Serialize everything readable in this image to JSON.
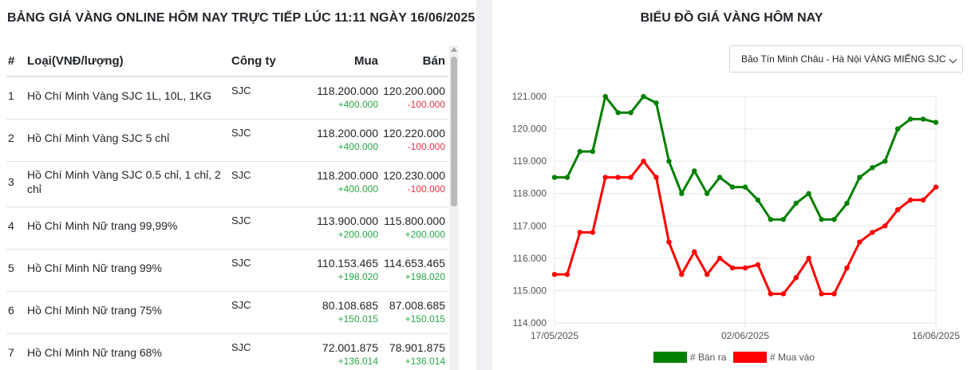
{
  "table": {
    "title": "BẢNG GIÁ VÀNG ONLINE HÔM NAY TRỰC TIẾP LÚC 11:11 NGÀY 16/06/2025",
    "headers": {
      "idx": "#",
      "name": "Loại(VNĐ/lượng)",
      "company": "Công ty",
      "buy": "Mua",
      "sell": "Bán"
    },
    "rows": [
      {
        "idx": "1",
        "name": "Hồ Chí Minh Vàng SJC 1L, 10L, 1KG",
        "company": "SJC",
        "buy": "118.200.000",
        "buy_change": "+400.000",
        "buy_dir": "up",
        "sell": "120.200.000",
        "sell_change": "-100.000",
        "sell_dir": "down"
      },
      {
        "idx": "2",
        "name": "Hồ Chí Minh Vàng SJC 5 chỉ",
        "company": "SJC",
        "buy": "118.200.000",
        "buy_change": "+400.000",
        "buy_dir": "up",
        "sell": "120.220.000",
        "sell_change": "-100.000",
        "sell_dir": "down"
      },
      {
        "idx": "3",
        "name": "Hồ Chí Minh Vàng SJC 0.5 chỉ, 1 chỉ, 2 chỉ",
        "company": "SJC",
        "buy": "118.200.000",
        "buy_change": "+400.000",
        "buy_dir": "up",
        "sell": "120.230.000",
        "sell_change": "-100.000",
        "sell_dir": "down"
      },
      {
        "idx": "4",
        "name": "Hồ Chí Minh Nữ trang 99,99%",
        "company": "SJC",
        "buy": "113.900.000",
        "buy_change": "+200.000",
        "buy_dir": "up",
        "sell": "115.800.000",
        "sell_change": "+200.000",
        "sell_dir": "up"
      },
      {
        "idx": "5",
        "name": "Hồ Chí Minh Nữ trang 99%",
        "company": "SJC",
        "buy": "110.153.465",
        "buy_change": "+198.020",
        "buy_dir": "up",
        "sell": "114.653.465",
        "sell_change": "+198.020",
        "sell_dir": "up"
      },
      {
        "idx": "6",
        "name": "Hồ Chí Minh Nữ trang 75%",
        "company": "SJC",
        "buy": "80.108.685",
        "buy_change": "+150.015",
        "buy_dir": "up",
        "sell": "87.008.685",
        "sell_change": "+150.015",
        "sell_dir": "up"
      },
      {
        "idx": "7",
        "name": "Hồ Chí Minh Nữ trang 68%",
        "company": "SJC",
        "buy": "72.001.875",
        "buy_change": "+136.014",
        "buy_dir": "up",
        "sell": "78.901.875",
        "sell_change": "+136.014",
        "sell_dir": "up"
      }
    ]
  },
  "chart_panel": {
    "title": "BIỂU ĐỒ GIÁ VÀNG HÔM NAY",
    "select_value": "Bảo Tín Minh Châu - Hà Nội VÀNG MIẾNG SJC"
  },
  "chart_data": {
    "type": "line",
    "x_tick_labels": [
      "17/05/2025",
      "02/06/2025",
      "16/06/2025"
    ],
    "y_tick_labels": [
      "121.000",
      "120.000",
      "119.000",
      "118.000",
      "117.000",
      "116.000",
      "115.000",
      "114.000"
    ],
    "ylim": [
      114000,
      121000
    ],
    "grid": true,
    "legend_position": "bottom",
    "series": [
      {
        "name": "# Bán ra",
        "color": "#008000",
        "values": [
          118500,
          118500,
          119300,
          119300,
          121000,
          120500,
          120500,
          121000,
          120800,
          119000,
          118000,
          118700,
          118000,
          118500,
          118200,
          118200,
          117800,
          117200,
          117200,
          117700,
          118000,
          117200,
          117200,
          117700,
          118500,
          118800,
          119000,
          120000,
          120300,
          120300,
          120200
        ]
      },
      {
        "name": "# Mua vào",
        "color": "#ff0000",
        "values": [
          115500,
          115500,
          116800,
          116800,
          118500,
          118500,
          118500,
          119000,
          118500,
          116500,
          115500,
          116200,
          115500,
          116000,
          115700,
          115700,
          115800,
          114900,
          114900,
          115400,
          116000,
          114900,
          114900,
          115700,
          116500,
          116800,
          117000,
          117500,
          117800,
          117800,
          118200
        ]
      }
    ]
  }
}
